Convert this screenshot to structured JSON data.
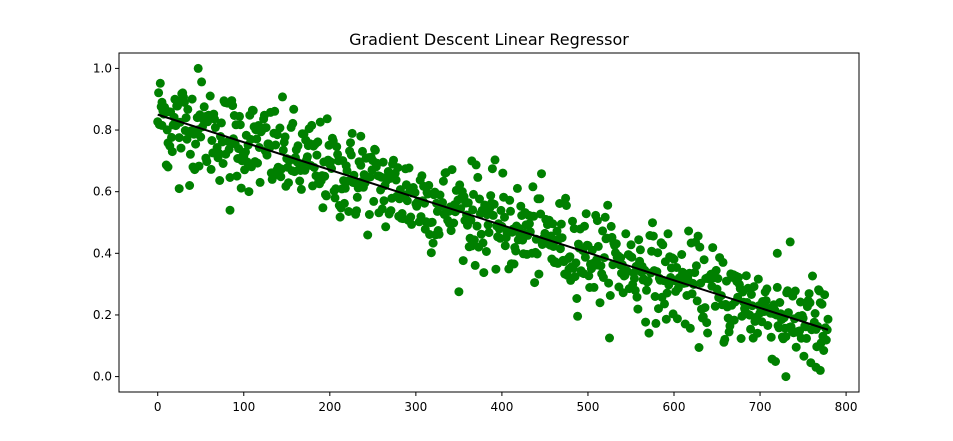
{
  "chart_data": {
    "type": "scatter",
    "title": "Gradient Descent Linear Regressor",
    "xlabel": "",
    "ylabel": "",
    "xlim": [
      -45,
      815
    ],
    "ylim": [
      -0.05,
      1.05
    ],
    "x_ticks": [
      0,
      100,
      200,
      300,
      400,
      500,
      600,
      700,
      800
    ],
    "x_tick_labels": [
      "0",
      "100",
      "200",
      "300",
      "400",
      "500",
      "600",
      "700",
      "800"
    ],
    "y_ticks": [
      0.0,
      0.2,
      0.4,
      0.6,
      0.8,
      1.0
    ],
    "y_tick_labels": [
      "0.0",
      "0.2",
      "0.4",
      "0.6",
      "0.8",
      "1.0"
    ],
    "grid": false,
    "legend": "none",
    "n_points": 780,
    "point_color": "#008000",
    "line_color": "#000000",
    "fit_line": {
      "x": [
        0,
        779
      ],
      "y": [
        0.85,
        0.152
      ]
    },
    "notable_points": {
      "x": [
        47,
        84,
        25,
        730,
        770,
        765,
        5,
        12,
        236,
        365,
        720
      ],
      "y": [
        1.0,
        0.54,
        0.61,
        0.0,
        0.02,
        0.03,
        0.89,
        0.68,
        0.78,
        0.7,
        0.4
      ]
    }
  }
}
